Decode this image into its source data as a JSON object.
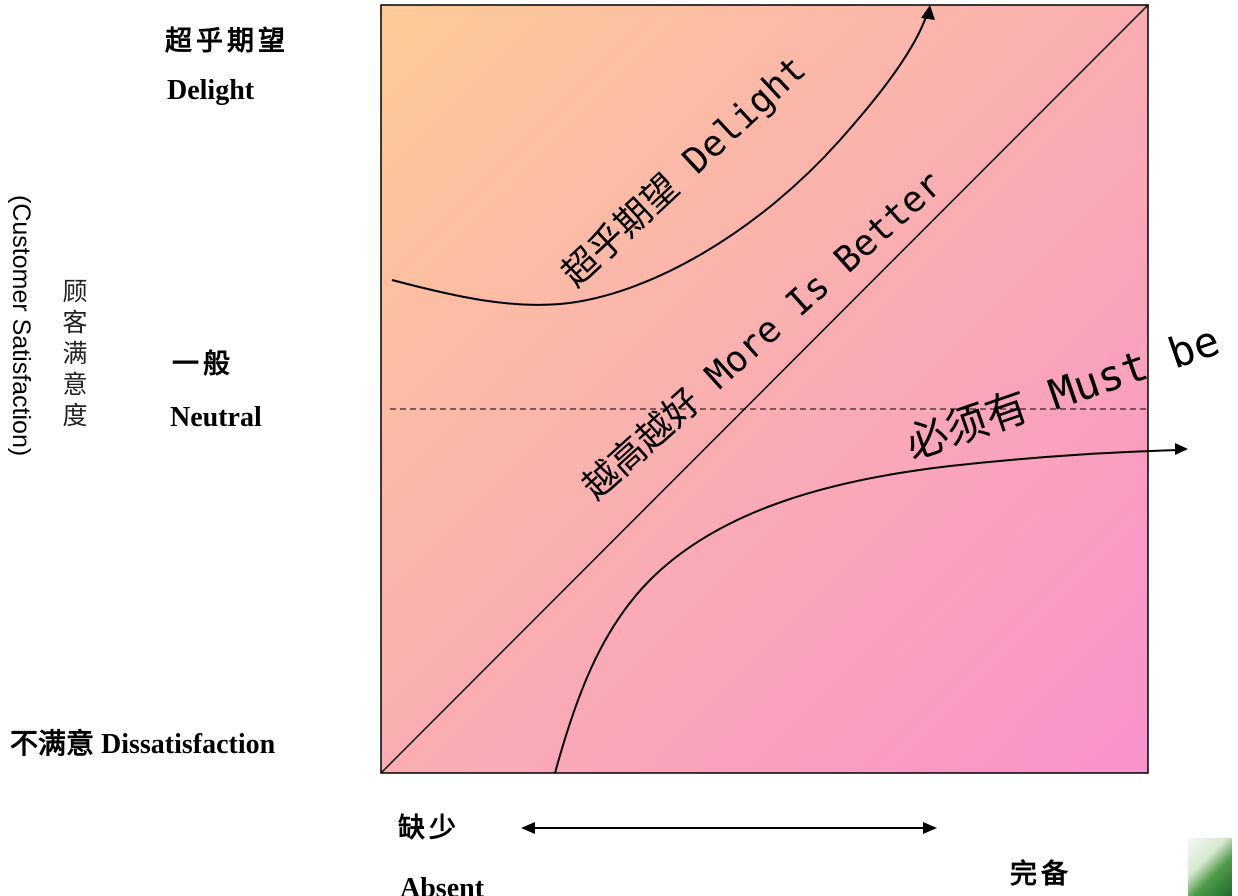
{
  "left_labels": {
    "delight_cn": "超乎期望",
    "delight_en": "Delight",
    "neutral_cn": "一般",
    "neutral_en": "Neutral",
    "dissatisfaction": "不满意 Dissatisfaction"
  },
  "y_axis": {
    "label_en": "(Customer Satisfaction)",
    "label_cn": "顾客满意度"
  },
  "curves": {
    "delight": "超乎期望 Delight",
    "more_is_better": "越高越好 More Is Better",
    "must_be": "必须有 Must be"
  },
  "x_axis": {
    "absent_cn": "缺少",
    "absent_en": "Absent",
    "complete_cn": "完备"
  },
  "colors": {
    "gradient_start": "#FDCB97",
    "gradient_mid": "#FAAEB2",
    "gradient_end": "#F992CC",
    "line": "#000000"
  }
}
